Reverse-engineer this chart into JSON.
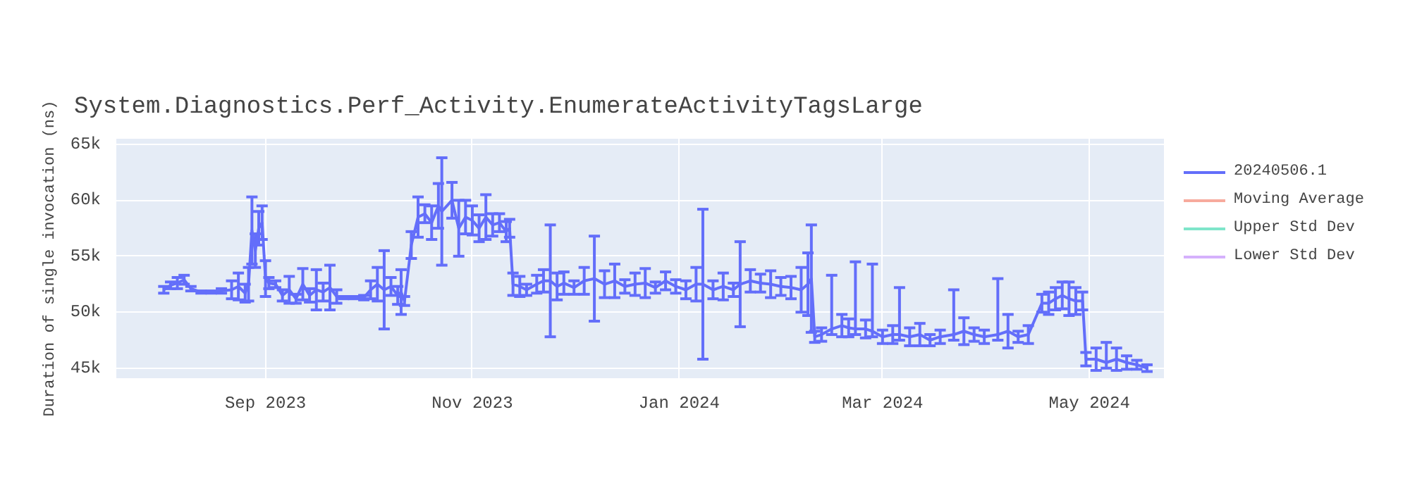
{
  "chart_data": {
    "type": "line",
    "title": "System.Diagnostics.Perf_Activity.EnumerateActivityTagsLarge",
    "ylabel": "Duration of single invocation (ns)",
    "xlim": [
      "2023-07-19",
      "2024-05-23"
    ],
    "xticks": [
      {
        "value": "2023-09-01",
        "label": "Sep 2023"
      },
      {
        "value": "2023-11-01",
        "label": "Nov 2023"
      },
      {
        "value": "2024-01-01",
        "label": "Jan 2024"
      },
      {
        "value": "2024-03-01",
        "label": "Mar 2024"
      },
      {
        "value": "2024-05-01",
        "label": "May 2024"
      }
    ],
    "ylim": [
      44100,
      65500
    ],
    "yticks": [
      {
        "value": 45000,
        "label": "45k"
      },
      {
        "value": 50000,
        "label": "50k"
      },
      {
        "value": 55000,
        "label": "55k"
      },
      {
        "value": 60000,
        "label": "60k"
      },
      {
        "value": 65000,
        "label": "65k"
      }
    ],
    "grid": true,
    "legend": "right",
    "marker": "none",
    "line_style": "solid",
    "x": [
      "2023-08-02",
      "2023-08-04",
      "2023-08-06",
      "2023-08-08",
      "2023-08-10",
      "2023-08-13",
      "2023-08-16",
      "2023-08-19",
      "2023-08-22",
      "2023-08-24",
      "2023-08-26",
      "2023-08-27",
      "2023-08-28",
      "2023-08-29",
      "2023-08-30",
      "2023-08-31",
      "2023-09-01",
      "2023-09-02",
      "2023-09-04",
      "2023-09-06",
      "2023-09-08",
      "2023-09-10",
      "2023-09-12",
      "2023-09-14",
      "2023-09-16",
      "2023-09-18",
      "2023-09-20",
      "2023-09-22",
      "2023-09-24",
      "2023-09-27",
      "2023-09-30",
      "2023-10-02",
      "2023-10-04",
      "2023-10-06",
      "2023-10-08",
      "2023-10-10",
      "2023-10-11",
      "2023-10-12",
      "2023-10-14",
      "2023-10-16",
      "2023-10-18",
      "2023-10-20",
      "2023-10-22",
      "2023-10-23",
      "2023-10-26",
      "2023-10-28",
      "2023-10-30",
      "2023-11-01",
      "2023-11-03",
      "2023-11-05",
      "2023-11-07",
      "2023-11-09",
      "2023-11-11",
      "2023-11-12",
      "2023-11-13",
      "2023-11-15",
      "2023-11-17",
      "2023-11-20",
      "2023-11-22",
      "2023-11-24",
      "2023-11-26",
      "2023-11-28",
      "2023-12-01",
      "2023-12-04",
      "2023-12-07",
      "2023-12-10",
      "2023-12-13",
      "2023-12-16",
      "2023-12-19",
      "2023-12-22",
      "2023-12-25",
      "2023-12-28",
      "2023-12-31",
      "2024-01-03",
      "2024-01-06",
      "2024-01-08",
      "2024-01-11",
      "2024-01-14",
      "2024-01-17",
      "2024-01-19",
      "2024-01-22",
      "2024-01-25",
      "2024-01-28",
      "2024-01-31",
      "2024-02-03",
      "2024-02-06",
      "2024-02-08",
      "2024-02-09",
      "2024-02-10",
      "2024-02-12",
      "2024-02-15",
      "2024-02-18",
      "2024-02-20",
      "2024-02-22",
      "2024-02-25",
      "2024-02-27",
      "2024-03-01",
      "2024-03-04",
      "2024-03-06",
      "2024-03-09",
      "2024-03-12",
      "2024-03-15",
      "2024-03-18",
      "2024-03-22",
      "2024-03-25",
      "2024-03-28",
      "2024-03-31",
      "2024-04-04",
      "2024-04-07",
      "2024-04-10",
      "2024-04-13",
      "2024-04-17",
      "2024-04-19",
      "2024-04-21",
      "2024-04-23",
      "2024-04-25",
      "2024-04-27",
      "2024-04-29",
      "2024-04-30",
      "2024-05-03",
      "2024-05-06",
      "2024-05-09",
      "2024-05-12",
      "2024-05-15",
      "2024-05-18"
    ],
    "series": [
      {
        "name": "20240506.1",
        "color": "#636efa",
        "values": [
          52000,
          52400,
          52600,
          52900,
          52100,
          51800,
          51800,
          51900,
          52000,
          52300,
          51700,
          52500,
          57300,
          55500,
          57500,
          58000,
          53000,
          52600,
          52500,
          51500,
          52000,
          51200,
          52500,
          51500,
          52000,
          51800,
          52200,
          51400,
          51300,
          51300,
          51300,
          52000,
          52500,
          52000,
          52300,
          51500,
          51800,
          51000,
          56000,
          58500,
          58800,
          58000,
          59500,
          59000,
          60000,
          57500,
          58500,
          58200,
          57500,
          58500,
          57800,
          58000,
          57200,
          57500,
          52500,
          52300,
          52000,
          52500,
          52800,
          52800,
          52300,
          52600,
          52200,
          52800,
          53000,
          52500,
          52800,
          52300,
          52500,
          52600,
          52200,
          52800,
          52300,
          52000,
          52500,
          52500,
          52000,
          52300,
          52000,
          52500,
          52800,
          52600,
          52500,
          52300,
          52200,
          52000,
          52500,
          53000,
          47800,
          48000,
          48500,
          48800,
          48600,
          48500,
          48500,
          48300,
          47800,
          48000,
          48000,
          47800,
          48000,
          47500,
          47800,
          48000,
          48300,
          48000,
          47800,
          48000,
          48300,
          47800,
          48000,
          50800,
          50800,
          51200,
          51500,
          51200,
          51000,
          51000,
          45800,
          45800,
          45500,
          45800,
          45500,
          45300,
          45000
        ],
        "errors": [
          300,
          300,
          500,
          400,
          200,
          100,
          100,
          200,
          800,
          1200,
          800,
          1500,
          3000,
          1500,
          1500,
          1500,
          1600,
          500,
          300,
          500,
          1200,
          400,
          1400,
          600,
          1800,
          800,
          2000,
          600,
          100,
          100,
          200,
          800,
          1500,
          3500,
          800,
          800,
          2000,
          400,
          1200,
          1800,
          800,
          1500,
          2000,
          4800,
          1600,
          2500,
          1500,
          1300,
          1200,
          2000,
          1000,
          800,
          900,
          800,
          1000,
          900,
          500,
          800,
          1000,
          5000,
          1200,
          1000,
          600,
          1200,
          3800,
          1200,
          1500,
          600,
          1000,
          1300,
          500,
          800,
          600,
          800,
          1500,
          6700,
          800,
          1200,
          600,
          3800,
          1000,
          800,
          1200,
          800,
          1000,
          2000,
          2800,
          4800,
          500,
          600,
          [
            48000,
            53300
          ],
          1000,
          800,
          [
            48000,
            54500
          ],
          800,
          [
            47800,
            54300
          ],
          600,
          800,
          [
            47500,
            52200
          ],
          800,
          1000,
          500,
          600,
          [
            47500,
            52000
          ],
          1200,
          600,
          600,
          [
            47500,
            53000
          ],
          1500,
          500,
          800,
          800,
          1000,
          1000,
          1200,
          1500,
          1200,
          800,
          600,
          1000,
          [
            45000,
            47300
          ],
          1000,
          600,
          400,
          300
        ]
      },
      {
        "name": "Moving Average",
        "color": "#ef553b",
        "values": [
          null,
          null,
          null,
          null,
          null,
          null,
          null,
          null,
          null,
          null,
          null,
          null,
          null,
          null,
          null,
          null,
          null,
          null,
          null,
          null,
          null,
          null,
          null,
          null,
          null,
          null,
          null,
          null,
          null,
          null,
          null,
          null,
          null,
          null,
          null,
          null,
          null,
          null,
          null,
          null,
          null,
          null,
          null,
          null,
          null,
          null,
          null,
          null,
          null,
          null,
          null,
          null,
          null,
          null,
          null,
          null,
          null,
          null,
          null,
          null,
          null,
          null,
          null,
          null,
          null,
          null,
          null,
          null,
          null,
          null,
          null,
          null,
          null,
          null,
          null,
          null,
          null,
          null,
          null,
          null,
          null,
          null,
          null,
          null,
          null,
          null,
          null,
          null,
          null,
          null,
          null,
          null,
          null,
          null,
          null,
          null,
          null,
          null,
          null,
          null,
          null,
          null,
          null,
          null,
          null,
          null,
          null,
          null,
          null,
          null,
          null,
          null,
          null,
          null,
          null,
          null,
          null,
          null,
          null,
          null,
          null,
          null,
          null,
          null,
          null
        ]
      },
      {
        "name": "Upper Std Dev",
        "color": "#00cc96",
        "values": [
          null,
          null,
          null,
          null,
          null,
          null,
          null,
          null,
          null,
          null,
          null,
          null,
          null,
          null,
          null,
          null,
          null,
          null,
          null,
          null,
          null,
          null,
          null,
          null,
          null,
          null,
          null,
          null,
          null,
          null,
          null,
          null,
          null,
          null,
          null,
          null,
          null,
          null,
          null,
          null,
          null,
          null,
          null,
          null,
          null,
          null,
          null,
          null,
          null,
          null,
          null,
          null,
          null,
          null,
          null,
          null,
          null,
          null,
          null,
          null,
          null,
          null,
          null,
          null,
          null,
          null,
          null,
          null,
          null,
          null,
          null,
          null,
          null,
          null,
          null,
          null,
          null,
          null,
          null,
          null,
          null,
          null,
          null,
          null,
          null,
          null,
          null,
          null,
          null,
          null,
          null,
          null,
          null,
          null,
          null,
          null,
          null,
          null,
          null,
          null,
          null,
          null,
          null,
          null,
          null,
          null,
          null,
          null,
          null,
          null,
          null,
          null,
          null,
          null,
          null,
          null,
          null,
          null,
          null,
          null,
          null,
          null,
          null,
          null,
          null
        ]
      },
      {
        "name": "Lower Std Dev",
        "color": "#ab63fa",
        "values": [
          null,
          null,
          null,
          null,
          null,
          null,
          null,
          null,
          null,
          null,
          null,
          null,
          null,
          null,
          null,
          null,
          null,
          null,
          null,
          null,
          null,
          null,
          null,
          null,
          null,
          null,
          null,
          null,
          null,
          null,
          null,
          null,
          null,
          null,
          null,
          null,
          null,
          null,
          null,
          null,
          null,
          null,
          null,
          null,
          null,
          null,
          null,
          null,
          null,
          null,
          null,
          null,
          null,
          null,
          null,
          null,
          null,
          null,
          null,
          null,
          null,
          null,
          null,
          null,
          null,
          null,
          null,
          null,
          null,
          null,
          null,
          null,
          null,
          null,
          null,
          null,
          null,
          null,
          null,
          null,
          null,
          null,
          null,
          null,
          null,
          null,
          null,
          null,
          null,
          null,
          null,
          null,
          null,
          null,
          null,
          null,
          null,
          null,
          null,
          null,
          null,
          null,
          null,
          null,
          null,
          null,
          null,
          null,
          null,
          null,
          null,
          null,
          null,
          null,
          null,
          null,
          null,
          null,
          null,
          null,
          null,
          null,
          null,
          null,
          null
        ]
      }
    ]
  }
}
